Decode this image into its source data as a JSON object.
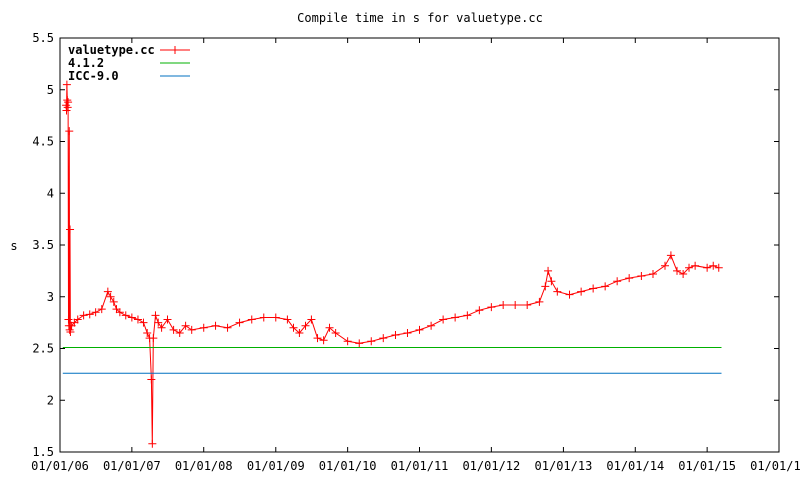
{
  "chart_data": {
    "type": "line",
    "title": "Compile time in s for valuetype.cc",
    "xlabel": "",
    "ylabel": "s",
    "x_tick_labels": [
      "01/01/06",
      "01/01/07",
      "01/01/08",
      "01/01/09",
      "01/01/10",
      "01/01/11",
      "01/01/12",
      "01/01/13",
      "01/01/14",
      "01/01/15",
      "01/01/16"
    ],
    "y_tick_labels": [
      "1.5",
      "2",
      "2.5",
      "3",
      "3.5",
      "4",
      "4.5",
      "5",
      "5.5"
    ],
    "xlim": [
      "2006-01-01",
      "2016-01-01"
    ],
    "ylim": [
      1.5,
      5.5
    ],
    "grid": false,
    "legend_position": "top-left",
    "series": [
      {
        "name": "valuetype.cc",
        "color": "#ff0000",
        "marker": "plus",
        "points": [
          [
            "2006-02-01",
            4.85
          ],
          [
            "2006-02-03",
            4.8
          ],
          [
            "2006-02-05",
            5.05
          ],
          [
            "2006-02-07",
            4.9
          ],
          [
            "2006-02-09",
            4.83
          ],
          [
            "2006-02-11",
            4.88
          ],
          [
            "2006-02-13",
            2.78
          ],
          [
            "2006-02-15",
            2.72
          ],
          [
            "2006-02-17",
            4.6
          ],
          [
            "2006-02-19",
            2.68
          ],
          [
            "2006-02-21",
            3.65
          ],
          [
            "2006-02-23",
            2.66
          ],
          [
            "2006-03-01",
            2.72
          ],
          [
            "2006-03-15",
            2.75
          ],
          [
            "2006-04-01",
            2.78
          ],
          [
            "2006-05-01",
            2.82
          ],
          [
            "2006-06-01",
            2.83
          ],
          [
            "2006-07-01",
            2.85
          ],
          [
            "2006-08-01",
            2.88
          ],
          [
            "2006-09-01",
            3.05
          ],
          [
            "2006-09-15",
            3.0
          ],
          [
            "2006-10-01",
            2.95
          ],
          [
            "2006-10-15",
            2.88
          ],
          [
            "2006-11-01",
            2.85
          ],
          [
            "2006-12-01",
            2.82
          ],
          [
            "2007-01-01",
            2.8
          ],
          [
            "2007-02-01",
            2.78
          ],
          [
            "2007-03-01",
            2.75
          ],
          [
            "2007-03-20",
            2.65
          ],
          [
            "2007-04-01",
            2.6
          ],
          [
            "2007-04-10",
            2.2
          ],
          [
            "2007-04-15",
            1.58
          ],
          [
            "2007-04-20",
            2.6
          ],
          [
            "2007-05-01",
            2.82
          ],
          [
            "2007-05-15",
            2.75
          ],
          [
            "2007-06-01",
            2.7
          ],
          [
            "2007-07-01",
            2.78
          ],
          [
            "2007-08-01",
            2.68
          ],
          [
            "2007-09-01",
            2.65
          ],
          [
            "2007-10-01",
            2.72
          ],
          [
            "2007-11-01",
            2.68
          ],
          [
            "2008-01-01",
            2.7
          ],
          [
            "2008-03-01",
            2.72
          ],
          [
            "2008-05-01",
            2.7
          ],
          [
            "2008-07-01",
            2.75
          ],
          [
            "2008-09-01",
            2.78
          ],
          [
            "2008-11-01",
            2.8
          ],
          [
            "2009-01-01",
            2.8
          ],
          [
            "2009-03-01",
            2.78
          ],
          [
            "2009-04-01",
            2.7
          ],
          [
            "2009-05-01",
            2.65
          ],
          [
            "2009-06-01",
            2.72
          ],
          [
            "2009-07-01",
            2.78
          ],
          [
            "2009-08-01",
            2.6
          ],
          [
            "2009-09-01",
            2.58
          ],
          [
            "2009-10-01",
            2.7
          ],
          [
            "2009-11-01",
            2.65
          ],
          [
            "2010-01-01",
            2.57
          ],
          [
            "2010-03-01",
            2.55
          ],
          [
            "2010-05-01",
            2.57
          ],
          [
            "2010-07-01",
            2.6
          ],
          [
            "2010-09-01",
            2.63
          ],
          [
            "2010-11-01",
            2.65
          ],
          [
            "2011-01-01",
            2.68
          ],
          [
            "2011-03-01",
            2.72
          ],
          [
            "2011-05-01",
            2.78
          ],
          [
            "2011-07-01",
            2.8
          ],
          [
            "2011-09-01",
            2.82
          ],
          [
            "2011-11-01",
            2.87
          ],
          [
            "2012-01-01",
            2.9
          ],
          [
            "2012-03-01",
            2.92
          ],
          [
            "2012-05-01",
            2.92
          ],
          [
            "2012-07-01",
            2.92
          ],
          [
            "2012-09-01",
            2.95
          ],
          [
            "2012-10-01",
            3.1
          ],
          [
            "2012-10-15",
            3.25
          ],
          [
            "2012-11-01",
            3.15
          ],
          [
            "2012-12-01",
            3.05
          ],
          [
            "2013-02-01",
            3.02
          ],
          [
            "2013-04-01",
            3.05
          ],
          [
            "2013-06-01",
            3.08
          ],
          [
            "2013-08-01",
            3.1
          ],
          [
            "2013-10-01",
            3.15
          ],
          [
            "2013-12-01",
            3.18
          ],
          [
            "2014-02-01",
            3.2
          ],
          [
            "2014-04-01",
            3.22
          ],
          [
            "2014-06-01",
            3.3
          ],
          [
            "2014-07-01",
            3.4
          ],
          [
            "2014-08-01",
            3.25
          ],
          [
            "2014-09-01",
            3.22
          ],
          [
            "2014-10-01",
            3.28
          ],
          [
            "2014-11-01",
            3.3
          ],
          [
            "2015-01-01",
            3.28
          ],
          [
            "2015-02-01",
            3.3
          ],
          [
            "2015-03-01",
            3.28
          ]
        ]
      },
      {
        "name": "4.1.2",
        "color": "#00b000",
        "marker": "none",
        "points": [
          [
            "2006-01-15",
            2.51
          ],
          [
            "2015-03-15",
            2.51
          ]
        ]
      },
      {
        "name": "ICC-9.0",
        "color": "#0070c0",
        "marker": "none",
        "points": [
          [
            "2006-01-15",
            2.26
          ],
          [
            "2015-03-15",
            2.26
          ]
        ]
      }
    ]
  }
}
